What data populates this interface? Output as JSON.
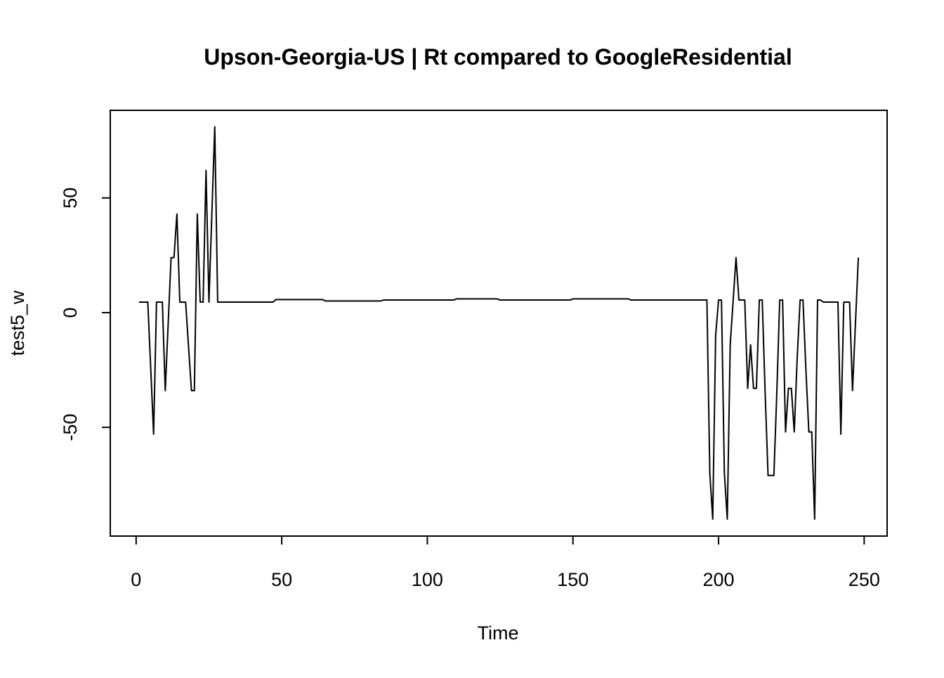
{
  "chart_data": {
    "type": "line",
    "title": "Upson-Georgia-US | Rt compared to GoogleResidential",
    "x_label": "Time",
    "y_label": "test5_w",
    "color": "#000000",
    "x": [
      1,
      2,
      3,
      4,
      5,
      6,
      7,
      8,
      9,
      10,
      11,
      12,
      13,
      14,
      15,
      16,
      17,
      18,
      19,
      20,
      21,
      22,
      23,
      24,
      25,
      26,
      27,
      28,
      29,
      30,
      31,
      32,
      33,
      34,
      35,
      36,
      37,
      38,
      39,
      40,
      41,
      42,
      43,
      44,
      45,
      46,
      47,
      48,
      49,
      50,
      51,
      52,
      53,
      54,
      55,
      56,
      57,
      58,
      59,
      60,
      61,
      62,
      63,
      64,
      65,
      66,
      67,
      68,
      69,
      70,
      71,
      72,
      73,
      74,
      75,
      76,
      77,
      78,
      79,
      80,
      81,
      82,
      83,
      84,
      85,
      86,
      87,
      88,
      89,
      90,
      91,
      92,
      93,
      94,
      95,
      96,
      97,
      98,
      99,
      100,
      101,
      102,
      103,
      104,
      105,
      106,
      107,
      108,
      109,
      110,
      111,
      112,
      113,
      114,
      115,
      116,
      117,
      118,
      119,
      120,
      121,
      122,
      123,
      124,
      125,
      126,
      127,
      128,
      129,
      130,
      131,
      132,
      133,
      134,
      135,
      136,
      137,
      138,
      139,
      140,
      141,
      142,
      143,
      144,
      145,
      146,
      147,
      148,
      149,
      150,
      151,
      152,
      153,
      154,
      155,
      156,
      157,
      158,
      159,
      160,
      161,
      162,
      163,
      164,
      165,
      166,
      167,
      168,
      169,
      170,
      171,
      172,
      173,
      174,
      175,
      176,
      177,
      178,
      179,
      180,
      181,
      182,
      183,
      184,
      185,
      186,
      187,
      188,
      189,
      190,
      191,
      192,
      193,
      194,
      195,
      196,
      197,
      198,
      199,
      200,
      201,
      202,
      203,
      204,
      205,
      206,
      207,
      208,
      209,
      210,
      211,
      212,
      213,
      214,
      215,
      216,
      217,
      218,
      219,
      220,
      221,
      222,
      223,
      224,
      225,
      226,
      227,
      228,
      229,
      230,
      231,
      232,
      233,
      234,
      235,
      236,
      237,
      238,
      239,
      240,
      241,
      242,
      243,
      244,
      245,
      246,
      247,
      248
    ],
    "values": [
      4.6,
      4.6,
      4.6,
      4.6,
      -24,
      -53,
      4.6,
      4.6,
      4.6,
      -34,
      -5,
      24,
      24,
      43,
      4.6,
      4.6,
      4.6,
      -15,
      -34,
      -34,
      43,
      4.6,
      4.6,
      62,
      4.6,
      43,
      81,
      4.6,
      4.6,
      4.6,
      4.6,
      4.6,
      4.6,
      4.6,
      4.6,
      4.6,
      4.6,
      4.6,
      4.6,
      4.6,
      4.6,
      4.6,
      4.6,
      4.6,
      4.6,
      4.6,
      4.6,
      5.7,
      5.7,
      5.7,
      5.7,
      5.7,
      5.7,
      5.7,
      5.7,
      5.7,
      5.7,
      5.7,
      5.7,
      5.7,
      5.7,
      5.7,
      5.7,
      5.7,
      5.1,
      5.1,
      5.1,
      5.1,
      5.1,
      5.1,
      5.1,
      5.1,
      5.1,
      5.1,
      5.1,
      5.1,
      5.1,
      5.1,
      5.1,
      5.1,
      5.1,
      5.1,
      5.1,
      5.1,
      5.5,
      5.5,
      5.5,
      5.5,
      5.5,
      5.5,
      5.5,
      5.5,
      5.5,
      5.5,
      5.5,
      5.5,
      5.5,
      5.5,
      5.5,
      5.5,
      5.5,
      5.5,
      5.5,
      5.5,
      5.5,
      5.5,
      5.5,
      5.5,
      5.5,
      6,
      6,
      6,
      6,
      6,
      6,
      6,
      6,
      6,
      6,
      6,
      6,
      6,
      6,
      6,
      5.5,
      5.5,
      5.5,
      5.5,
      5.5,
      5.5,
      5.5,
      5.5,
      5.5,
      5.5,
      5.5,
      5.5,
      5.5,
      5.5,
      5.5,
      5.5,
      5.5,
      5.5,
      5.5,
      5.5,
      5.5,
      5.5,
      5.5,
      5.5,
      5.5,
      6,
      6,
      6,
      6,
      6,
      6,
      6,
      6,
      6,
      6,
      6,
      6,
      6,
      6,
      6,
      6,
      6,
      6,
      6,
      6,
      5.5,
      5.5,
      5.5,
      5.5,
      5.5,
      5.5,
      5.5,
      5.5,
      5.5,
      5.5,
      5.5,
      5.5,
      5.5,
      5.5,
      5.5,
      5.5,
      5.5,
      5.5,
      5.5,
      5.5,
      5.5,
      5.5,
      5.5,
      5.5,
      5.5,
      5.5,
      5.5,
      -70,
      -90,
      -10,
      5.5,
      5.5,
      -70,
      -90,
      -14,
      5,
      24,
      5.5,
      5.5,
      5.5,
      -33,
      -14,
      -33,
      -33,
      5.5,
      5.5,
      -35,
      -71,
      -71,
      -71,
      -35,
      5.5,
      5.5,
      -52,
      -33,
      -33,
      -52,
      -20,
      5.5,
      5.5,
      -25,
      -52,
      -52,
      -90,
      5.5,
      5.5,
      4.6,
      4.6,
      4.6,
      4.6,
      4.6,
      4.6,
      -53,
      4.6,
      4.6,
      4.6,
      -34,
      -5,
      24
    ],
    "xlim": [
      -8.88,
      257.88
    ],
    "ylim": [
      -97.4,
      88.2
    ],
    "xticks": [
      0,
      50,
      100,
      150,
      200,
      250
    ],
    "yticks": [
      -50,
      0,
      50
    ]
  }
}
